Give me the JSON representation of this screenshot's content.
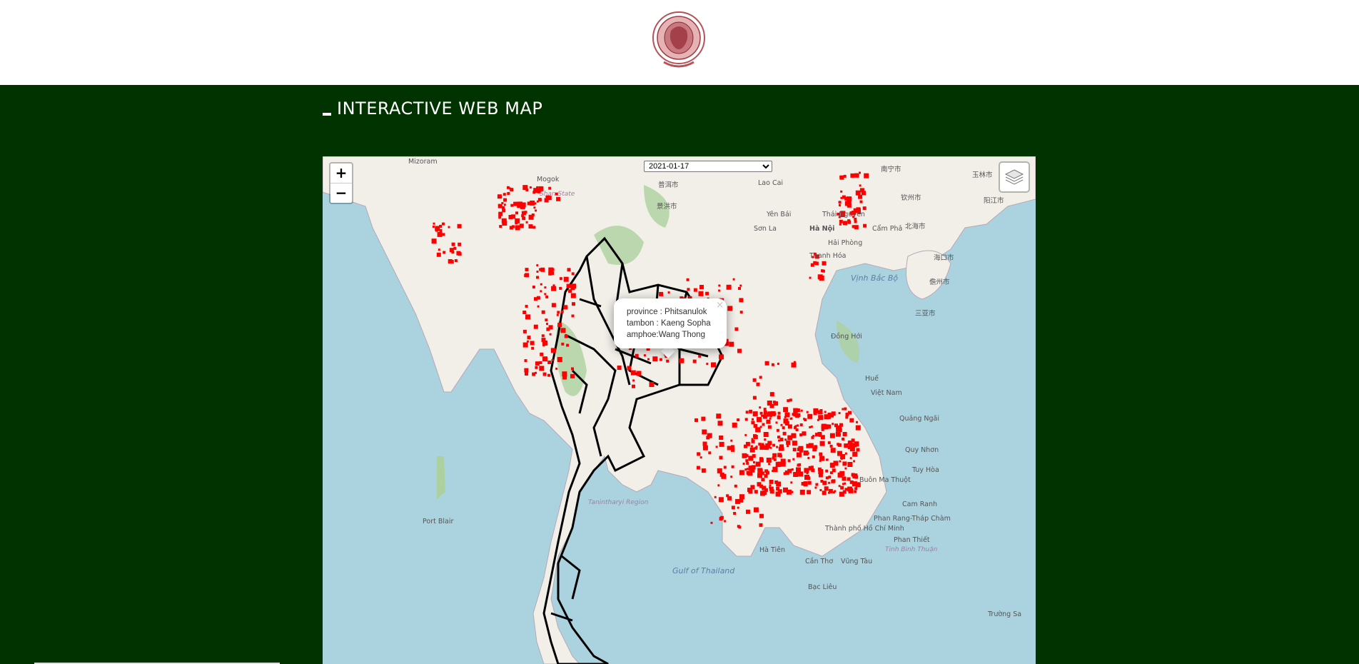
{
  "page": {
    "title": "INTERACTIVE WEB MAP",
    "logo_icon": "royal-seal-emblem",
    "background_color": "#003300",
    "header_color": "#ffffff"
  },
  "map": {
    "zoom_in_label": "+",
    "zoom_out_label": "−",
    "layers_icon": "layers-icon",
    "date_select": {
      "selected": "2021-01-17"
    },
    "popup": {
      "province": "province : Phitsanulok",
      "tambon": "tambon : Kaeng Sopha",
      "amphoe": "amphoe:Wang Thong",
      "close_label": "×"
    },
    "labels": [
      {
        "text": "Mizoram",
        "kind": "place"
      },
      {
        "text": "Mogok",
        "kind": "place"
      },
      {
        "text": "Shan State",
        "kind": "region"
      },
      {
        "text": "普洱市",
        "kind": "place"
      },
      {
        "text": "景洪市",
        "kind": "place"
      },
      {
        "text": "Lao Cai",
        "kind": "place"
      },
      {
        "text": "Yên Bái",
        "kind": "place"
      },
      {
        "text": "Thái Nguyên",
        "kind": "place"
      },
      {
        "text": "Hà Nội",
        "kind": "place"
      },
      {
        "text": "Hải Phòng",
        "kind": "place"
      },
      {
        "text": "Cẩm Phả",
        "kind": "place"
      },
      {
        "text": "Sơn La",
        "kind": "place"
      },
      {
        "text": "Thanh Hóa",
        "kind": "place"
      },
      {
        "text": "Đồng Hới",
        "kind": "place"
      },
      {
        "text": "Huế",
        "kind": "place"
      },
      {
        "text": "Việt Nam",
        "kind": "place"
      },
      {
        "text": "Quảng Ngãi",
        "kind": "place"
      },
      {
        "text": "Quy Nhơn",
        "kind": "place"
      },
      {
        "text": "Tuy Hòa",
        "kind": "place"
      },
      {
        "text": "Buôn Ma Thuột",
        "kind": "place"
      },
      {
        "text": "Cam Ranh",
        "kind": "place"
      },
      {
        "text": "Phan Rang-Tháp Chàm",
        "kind": "place"
      },
      {
        "text": "Phan Thiết",
        "kind": "place"
      },
      {
        "text": "Thành phố Hồ Chí Minh",
        "kind": "place"
      },
      {
        "text": "Vũng Tàu",
        "kind": "place"
      },
      {
        "text": "Cần Thơ",
        "kind": "place"
      },
      {
        "text": "Bạc Liêu",
        "kind": "place"
      },
      {
        "text": "Hà Tiên",
        "kind": "place"
      },
      {
        "text": "Gulf of Thailand",
        "kind": "water"
      },
      {
        "text": "Tanintharyi Region",
        "kind": "region"
      },
      {
        "text": "Port Blair",
        "kind": "place"
      },
      {
        "text": "北海市",
        "kind": "place"
      },
      {
        "text": "海口市",
        "kind": "place"
      },
      {
        "text": "儋州市",
        "kind": "place"
      },
      {
        "text": "三亚市",
        "kind": "place"
      },
      {
        "text": "南宁市",
        "kind": "place"
      },
      {
        "text": "玉林市",
        "kind": "place"
      },
      {
        "text": "阳江市",
        "kind": "place"
      },
      {
        "text": "钦州市",
        "kind": "place"
      },
      {
        "text": "Trường Sa",
        "kind": "place"
      },
      {
        "text": "Tinh Bình Thuận",
        "kind": "region"
      },
      {
        "text": "Vịnh Bắc Bộ",
        "kind": "water"
      }
    ],
    "colors": {
      "sea": "#aad3df",
      "land": "#f2efe9",
      "forest": "#add19e",
      "hotspot": "#ff0000",
      "boundary": "#000000"
    }
  }
}
